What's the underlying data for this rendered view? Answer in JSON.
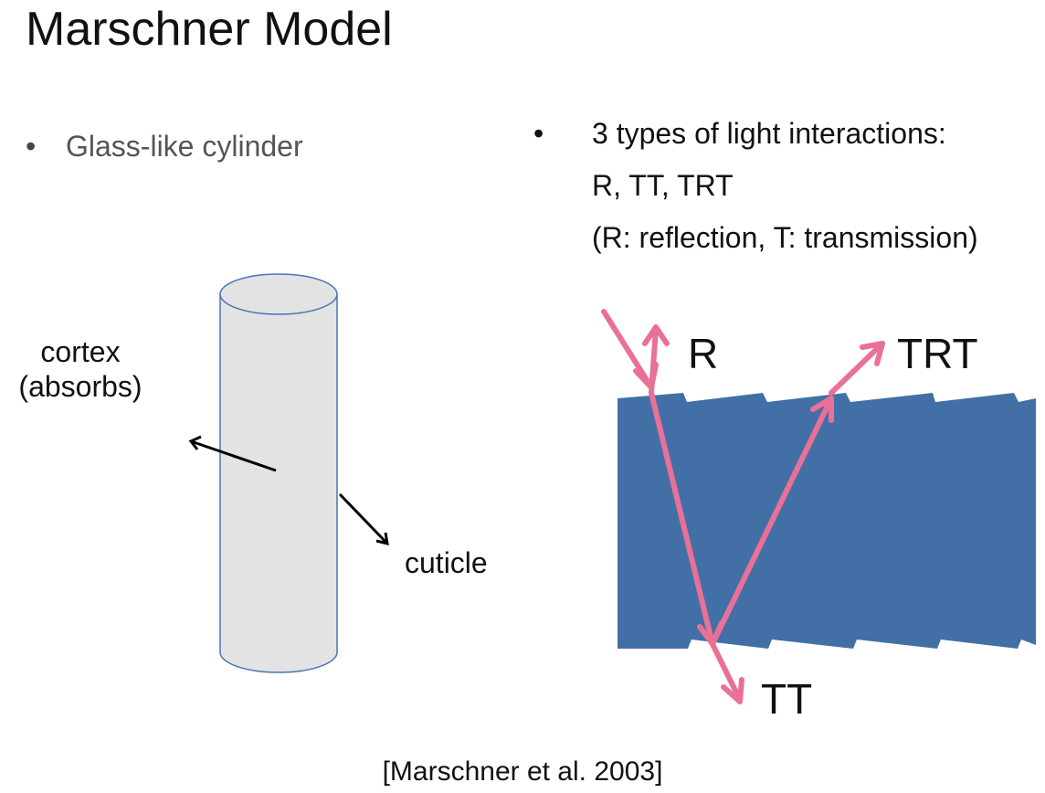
{
  "title": "Marschner Model",
  "left_bullet": {
    "marker": "•",
    "text": "Glass-like cylinder"
  },
  "right_bullet": {
    "marker": "•",
    "lines": [
      "3 types of light interactions:",
      "R, TT, TRT",
      "(R: reflection, T: transmission)"
    ]
  },
  "cylinder_labels": {
    "cortex": "cortex",
    "cortex_note": "(absorbs)",
    "cuticle": "cuticle"
  },
  "path_labels": {
    "r": "R",
    "trt": "TRT",
    "tt": "TT"
  },
  "citation": "[Marschner et al. 2003]",
  "colors": {
    "cylinder_fill": "#e3e3e3",
    "cylinder_stroke": "#4a74b8",
    "fiber_fill": "#4270a6",
    "light_path": "#ea7097"
  }
}
